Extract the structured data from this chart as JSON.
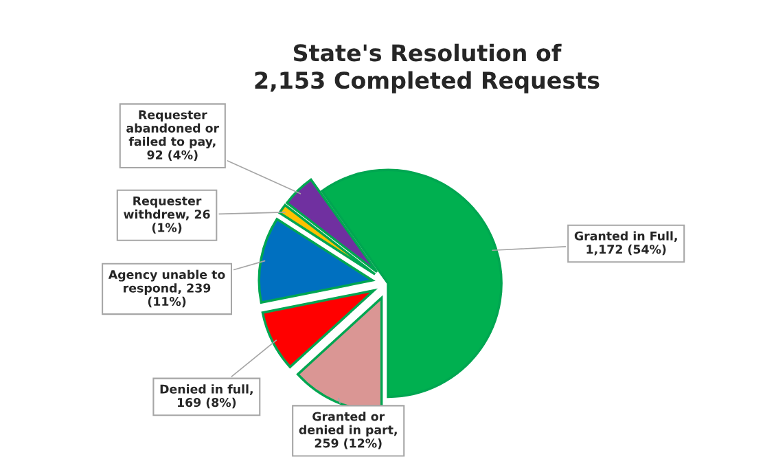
{
  "chart_data": {
    "type": "pie",
    "title": "State's Resolution of 2,153 Completed Requests",
    "categories": [
      "Granted in Full, 1,172 (54%)",
      "Granted or denied in part, 259 (12%)",
      "Denied in full, 169 (8%)",
      "Agency unable to respond, 239 (11%)",
      "Requester withdrew, 26 (1%)",
      "Requester abandoned or failed to pay, 92 (4%)"
    ],
    "values": [
      1172,
      259,
      169,
      239,
      26,
      92
    ],
    "colors": [
      "#00b050",
      "#da9694",
      "#ff0000",
      "#0070c0",
      "#ffc000",
      "#7030a0"
    ],
    "legend": false
  }
}
